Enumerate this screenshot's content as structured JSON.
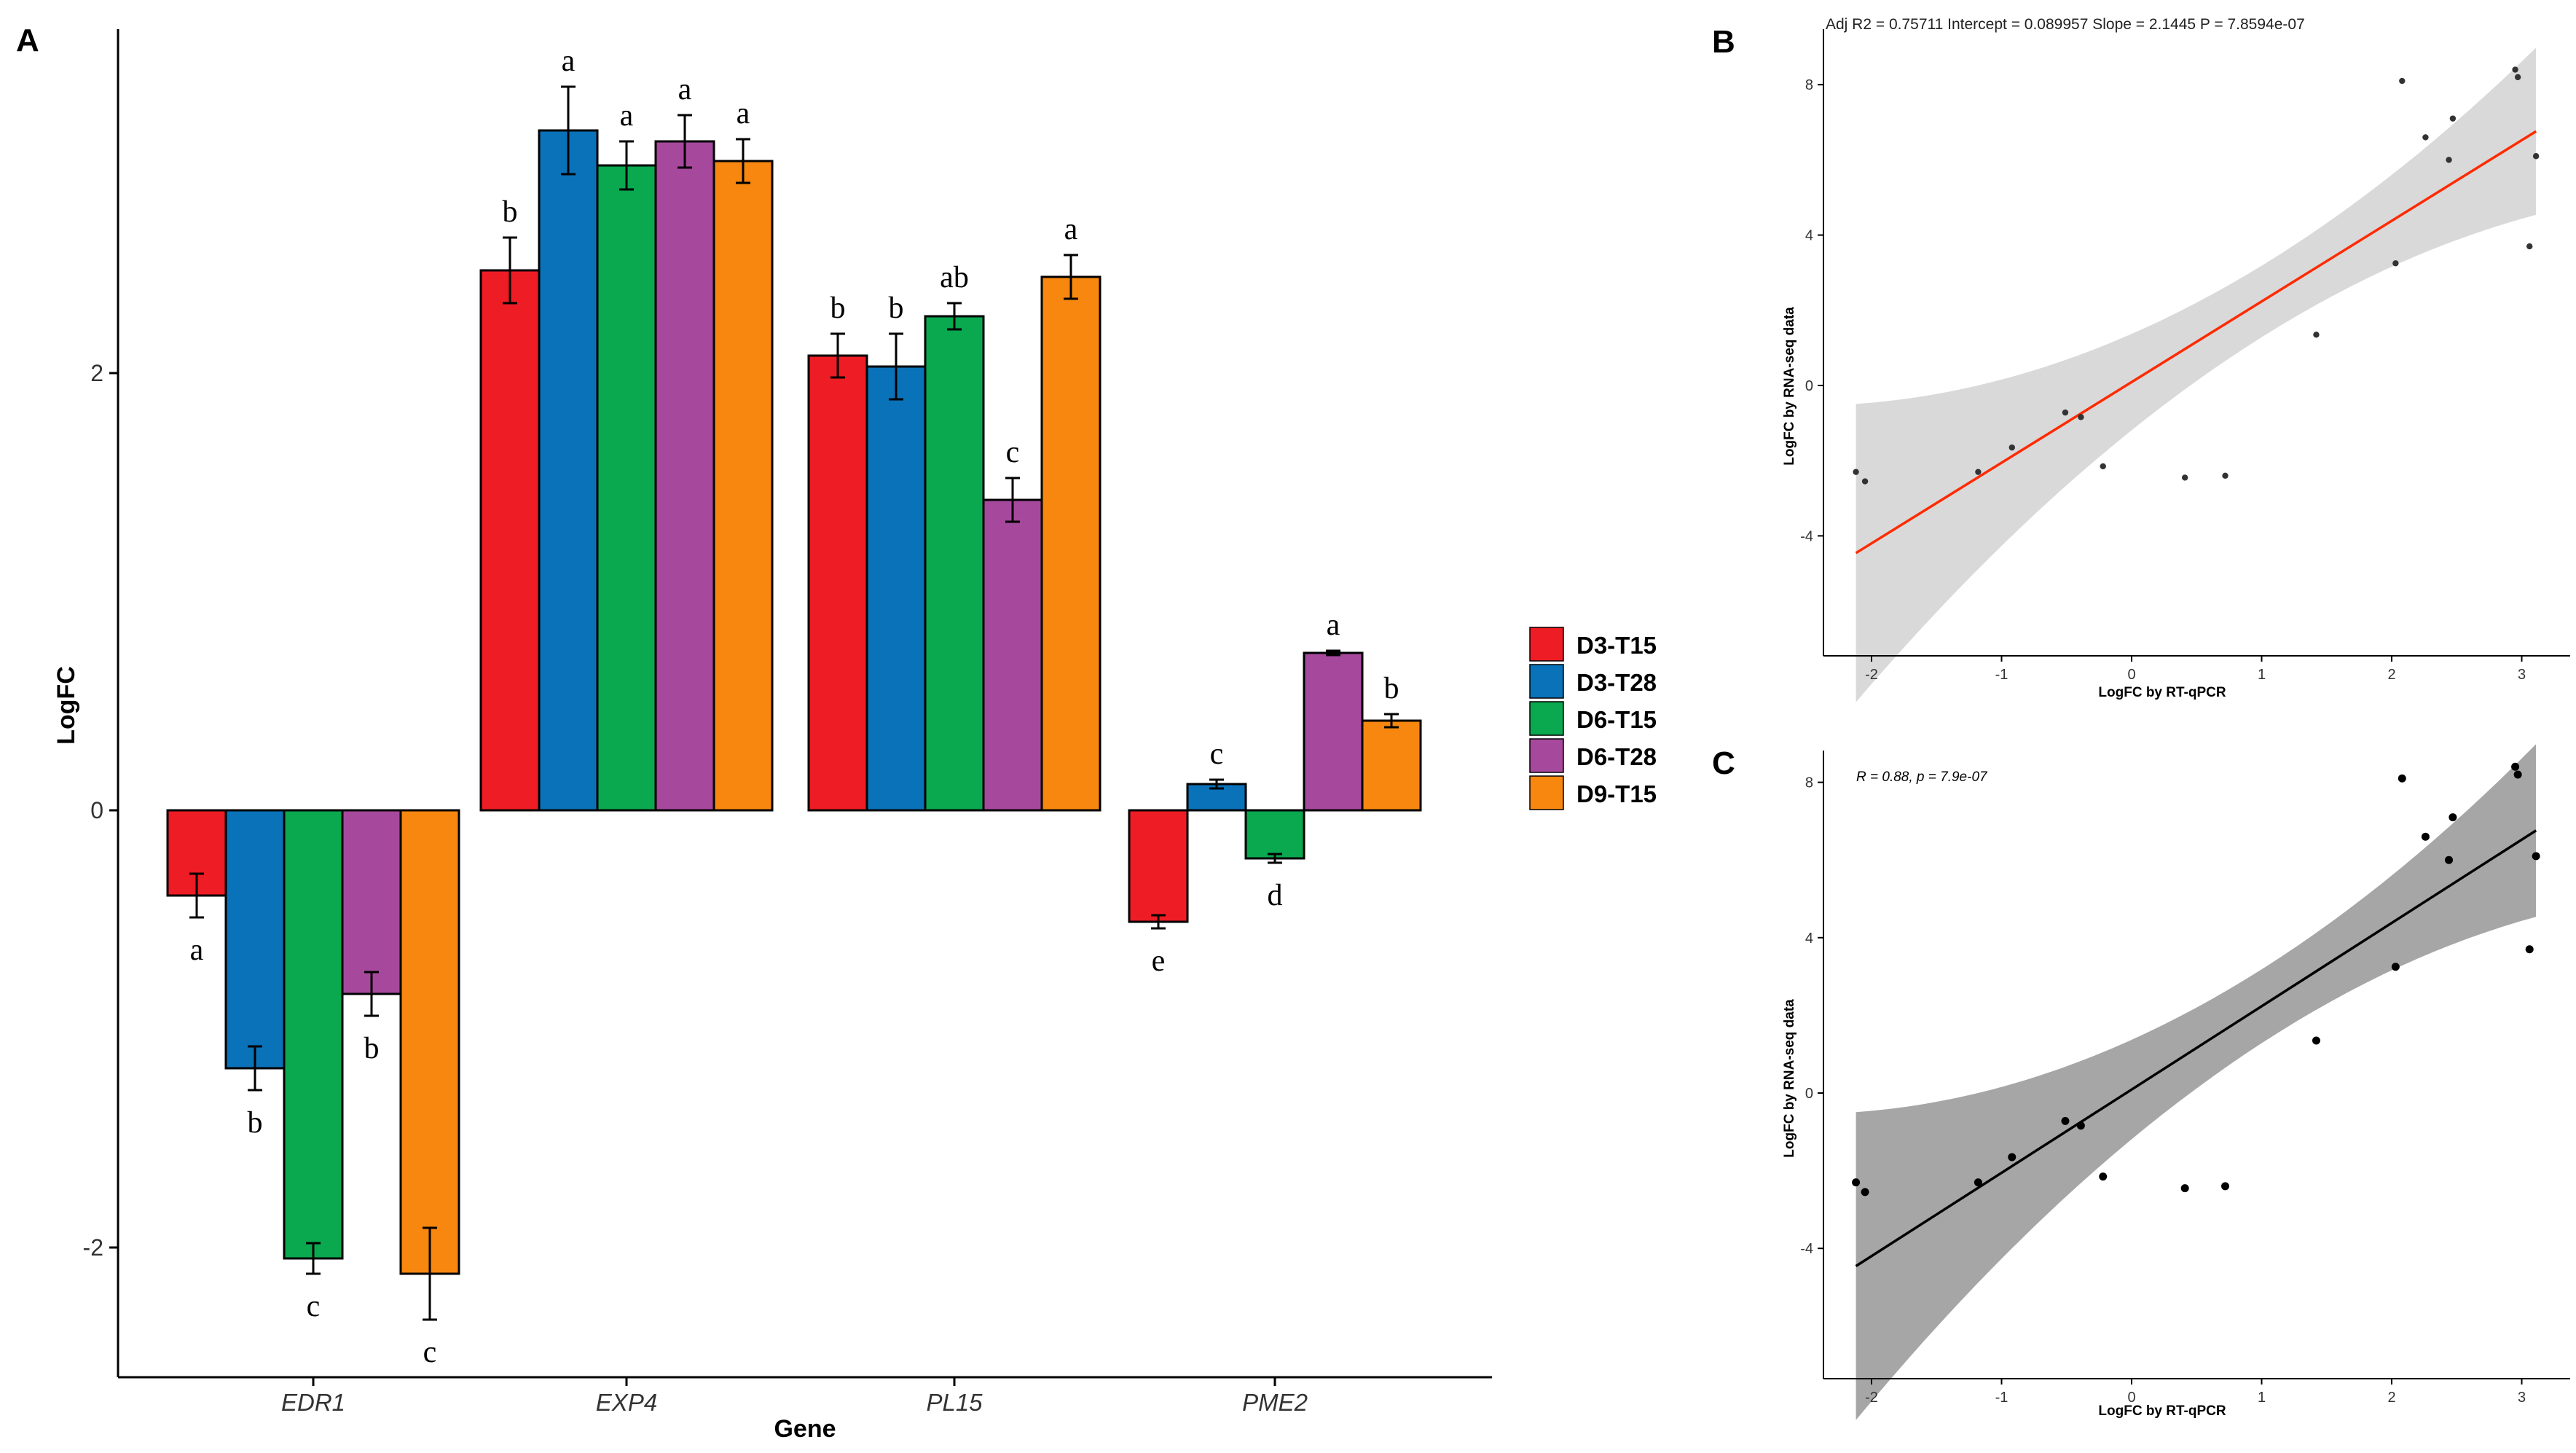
{
  "panels": {
    "A": {
      "letter": "A",
      "title": "",
      "xlabel": "Gene",
      "ylabel": "LogFC",
      "yticks": [
        -2,
        0,
        2
      ],
      "ytick_labels": [
        "-2",
        "0",
        "2"
      ],
      "ylim": [
        -2.6,
        3.6
      ],
      "legend": {
        "entries": [
          "D3-T15",
          "D3-T28",
          "D6-T15",
          "D6-T28",
          "D9-T15"
        ],
        "colors": [
          "#ee1c24",
          "#0a72b9",
          "#0aa84f",
          "#a6499c",
          "#f7870f"
        ],
        "position": "right"
      }
    },
    "B": {
      "letter": "B",
      "stats": "Adj R2 =  0.75711 Intercept = 0.089957  Slope = 2.1445  P = 7.8594e-07",
      "xlabel": "LogFC by RT-qPCR",
      "ylabel": "LogFC by RNA-seq data",
      "xticks": [
        "-2",
        "-1",
        "0",
        "1",
        "2",
        "3"
      ],
      "yticks": [
        "-4",
        "0",
        "4",
        "8"
      ],
      "line_color": "#ff2a00",
      "band_color": "#d9d9d9",
      "point_color": "#333333"
    },
    "C": {
      "letter": "C",
      "stats": "R = 0.88, p = 7.9e-07",
      "xlabel": "LogFC by RT-qPCR",
      "ylabel": "LogFC by RNA-seq data",
      "xticks": [
        "-2",
        "-1",
        "0",
        "1",
        "2",
        "3"
      ],
      "yticks": [
        "-4",
        "0",
        "4",
        "8"
      ],
      "line_color": "#000000",
      "band_color": "#a6a6a6",
      "point_color": "#000000"
    }
  },
  "chart_data": [
    {
      "type": "bar",
      "panel": "A",
      "xlabel": "Gene",
      "ylabel": "LogFC",
      "ylim": [
        -2.6,
        3.6
      ],
      "categories": [
        "EDR1",
        "EXP4",
        "PL15",
        "PME2"
      ],
      "series": [
        {
          "name": "D3-T15",
          "color": "#ee1c24",
          "values": [
            -0.39,
            2.47,
            2.08,
            -0.51
          ],
          "errors": [
            0.1,
            0.15,
            0.1,
            0.03
          ],
          "letters": [
            "a",
            "b",
            "b",
            "e"
          ]
        },
        {
          "name": "D3-T28",
          "color": "#0a72b9",
          "values": [
            -1.18,
            3.11,
            2.03,
            0.12
          ],
          "errors": [
            0.1,
            0.2,
            0.15,
            0.02
          ],
          "letters": [
            "b",
            "a",
            "b",
            "c"
          ]
        },
        {
          "name": "D6-T15",
          "color": "#0aa84f",
          "values": [
            -2.05,
            2.95,
            2.26,
            -0.22
          ],
          "errors": [
            0.07,
            0.11,
            0.06,
            0.02
          ],
          "letters": [
            "c",
            "a",
            "ab",
            "d"
          ]
        },
        {
          "name": "D6-T28",
          "color": "#a6499c",
          "values": [
            -0.84,
            3.06,
            1.42,
            0.72
          ],
          "errors": [
            0.1,
            0.12,
            0.1,
            0.01
          ],
          "letters": [
            "b",
            "a",
            "c",
            "a"
          ]
        },
        {
          "name": "D9-T15",
          "color": "#f7870f",
          "values": [
            -2.12,
            2.97,
            2.44,
            0.41
          ],
          "errors": [
            0.21,
            0.1,
            0.1,
            0.03
          ],
          "letters": [
            "c",
            "a",
            "a",
            "b"
          ]
        }
      ]
    },
    {
      "type": "scatter",
      "panel": "B",
      "title": "Adj R2 =  0.75711 Intercept = 0.089957  Slope = 2.1445  P = 7.8594e-07",
      "xlabel": "LogFC by RT-qPCR",
      "ylabel": "LogFC by RNA-seq data",
      "xlim": [
        -2.25,
        3.15
      ],
      "ylim": [
        -6.8,
        8.6
      ],
      "points": [
        [
          -2.12,
          -2.3
        ],
        [
          -2.05,
          -2.55
        ],
        [
          -1.18,
          -2.3
        ],
        [
          -0.92,
          -1.65
        ],
        [
          -0.51,
          -0.72
        ],
        [
          -0.39,
          -0.84
        ],
        [
          -0.22,
          -2.15
        ],
        [
          0.41,
          -2.45
        ],
        [
          0.72,
          -2.4
        ],
        [
          1.42,
          1.35
        ],
        [
          2.03,
          3.25
        ],
        [
          2.08,
          8.1
        ],
        [
          2.26,
          6.6
        ],
        [
          2.44,
          6.0
        ],
        [
          2.47,
          7.1
        ],
        [
          2.95,
          8.4
        ],
        [
          2.97,
          8.2
        ],
        [
          3.06,
          3.7
        ],
        [
          3.11,
          6.1
        ]
      ],
      "fit": {
        "intercept": 0.089957,
        "slope": 2.1445,
        "x_range": [
          -2.12,
          3.11
        ]
      }
    },
    {
      "type": "scatter",
      "panel": "C",
      "title": "R = 0.88, p = 7.9e-07",
      "xlabel": "LogFC by RT-qPCR",
      "ylabel": "LogFC by RNA-seq data",
      "xlim": [
        -2.25,
        3.15
      ],
      "ylim": [
        -6.8,
        8.6
      ],
      "points": [
        [
          -2.12,
          -2.3
        ],
        [
          -2.05,
          -2.55
        ],
        [
          -1.18,
          -2.3
        ],
        [
          -0.92,
          -1.65
        ],
        [
          -0.51,
          -0.72
        ],
        [
          -0.39,
          -0.84
        ],
        [
          -0.22,
          -2.15
        ],
        [
          0.41,
          -2.45
        ],
        [
          0.72,
          -2.4
        ],
        [
          1.42,
          1.35
        ],
        [
          2.03,
          3.25
        ],
        [
          2.08,
          8.1
        ],
        [
          2.26,
          6.6
        ],
        [
          2.44,
          6.0
        ],
        [
          2.47,
          7.1
        ],
        [
          2.95,
          8.4
        ],
        [
          2.97,
          8.2
        ],
        [
          3.06,
          3.7
        ],
        [
          3.11,
          6.1
        ]
      ],
      "fit": {
        "intercept": 0.089957,
        "slope": 2.1445,
        "x_range": [
          -2.12,
          3.11
        ]
      }
    }
  ]
}
